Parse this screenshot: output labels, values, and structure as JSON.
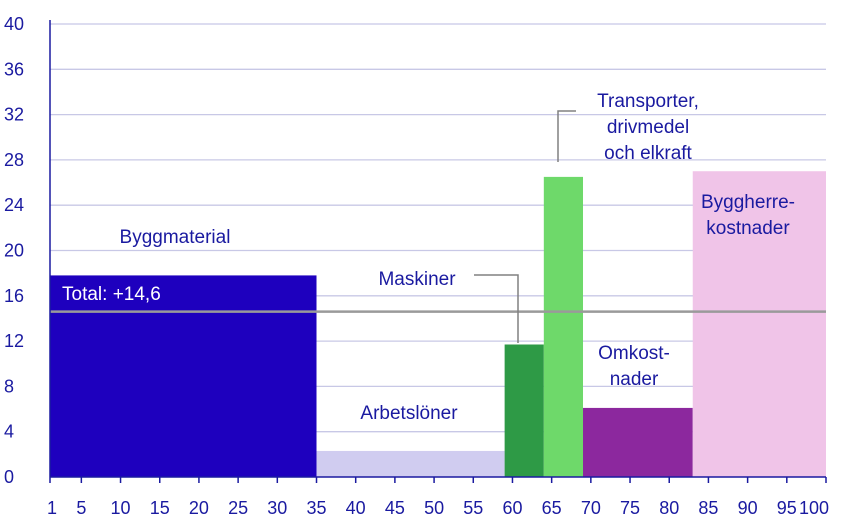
{
  "chart_data": {
    "type": "bar",
    "variable_width": true,
    "xlim": [
      1,
      100
    ],
    "ylim": [
      0,
      40
    ],
    "x_ticks": [
      1,
      5,
      10,
      15,
      20,
      25,
      30,
      35,
      40,
      45,
      50,
      55,
      60,
      65,
      70,
      75,
      80,
      85,
      90,
      95,
      100
    ],
    "y_ticks": [
      0,
      4,
      8,
      12,
      16,
      20,
      24,
      28,
      32,
      36,
      40
    ],
    "grid": true,
    "segments": [
      {
        "label": "Byggmaterial",
        "lines": [
          "Byggmaterial"
        ],
        "x_start": 1,
        "x_end": 35,
        "value": 17.8,
        "color": "#1e00be"
      },
      {
        "label": "Arbetslöner",
        "lines": [
          "Arbetslöner"
        ],
        "x_start": 35,
        "x_end": 59,
        "value": 2.3,
        "color": "#d0ccf0"
      },
      {
        "label": "Maskiner",
        "lines": [
          "Maskiner"
        ],
        "x_start": 59,
        "x_end": 64,
        "value": 11.7,
        "color": "#2e9a46"
      },
      {
        "label": "Transporter, drivmedel och elkraft",
        "lines": [
          "Transporter,",
          "drivmedel",
          "och elkraft"
        ],
        "x_start": 64,
        "x_end": 69,
        "value": 26.5,
        "color": "#6ed96a"
      },
      {
        "label": "Omkostnader",
        "lines": [
          "Omkost-",
          "nader"
        ],
        "x_start": 69,
        "x_end": 83,
        "value": 6.1,
        "color": "#8c289e"
      },
      {
        "label": "Byggherrekostnader",
        "lines": [
          "Byggherre-",
          "kostnader"
        ],
        "x_start": 83,
        "x_end": 101,
        "value": 27.0,
        "color": "#f0c4e8"
      }
    ],
    "total": {
      "label": "Total: +14,6",
      "value": 14.6
    }
  },
  "colors": {
    "axis_text": "#1a1aa0",
    "grid": "#c8c8e6",
    "total_line": "#9a9a9a"
  }
}
